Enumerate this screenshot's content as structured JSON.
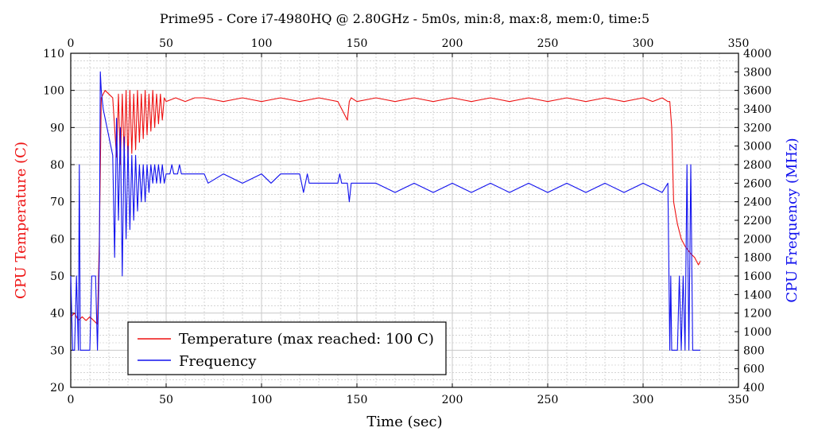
{
  "chart_data": {
    "type": "line",
    "title": "Prime95 - Core i7-4980HQ @ 2.80GHz - 5m0s, min:8, max:8, mem:0, time:5",
    "xlabel": "Time (sec)",
    "ylabel_left": "CPU Temperature (C)",
    "ylabel_right": "CPU Frequency (MHz)",
    "xlim": [
      0,
      350
    ],
    "ylim_left": [
      20,
      110
    ],
    "ylim_right": [
      400,
      4000
    ],
    "x_ticks": [
      "0",
      "50",
      "100",
      "150",
      "200",
      "250",
      "300",
      "350"
    ],
    "y_ticks_left": [
      "20",
      "30",
      "40",
      "50",
      "60",
      "70",
      "80",
      "90",
      "100",
      "110"
    ],
    "y_ticks_right": [
      "400",
      "600",
      "800",
      "1000",
      "1200",
      "1400",
      "1600",
      "1800",
      "2000",
      "2200",
      "2400",
      "2600",
      "2800",
      "3000",
      "3200",
      "3400",
      "3600",
      "3800",
      "4000"
    ],
    "grid": true,
    "legend_position": "bottom-left",
    "colors": {
      "temperature": "#ee1111",
      "frequency": "#1111ee"
    },
    "series": [
      {
        "name": "Temperature (max reached: 100 C)",
        "axis": "left",
        "x": [
          0,
          2,
          4,
          6,
          8,
          10,
          12,
          14,
          15,
          16,
          18,
          20,
          22,
          24,
          25,
          26,
          27,
          28,
          29,
          30,
          31,
          32,
          33,
          34,
          35,
          36,
          37,
          38,
          39,
          40,
          41,
          42,
          43,
          44,
          45,
          46,
          47,
          48,
          49,
          50,
          55,
          60,
          65,
          70,
          80,
          90,
          100,
          110,
          120,
          130,
          140,
          145,
          146,
          147,
          150,
          160,
          170,
          180,
          190,
          200,
          210,
          220,
          230,
          240,
          250,
          260,
          270,
          280,
          290,
          300,
          305,
          310,
          313,
          314,
          315,
          316,
          318,
          320,
          322,
          325,
          327,
          328,
          329,
          330
        ],
        "y": [
          39,
          40,
          38,
          39,
          38,
          39,
          38,
          37,
          60,
          98,
          100,
          99,
          98,
          82,
          99,
          80,
          99,
          82,
          100,
          81,
          100,
          83,
          99,
          84,
          100,
          86,
          99,
          87,
          100,
          88,
          99,
          89,
          100,
          90,
          99,
          91,
          99,
          92,
          98,
          97,
          98,
          97,
          98,
          98,
          97,
          98,
          97,
          98,
          97,
          98,
          97,
          92,
          97,
          98,
          97,
          98,
          97,
          98,
          97,
          98,
          97,
          98,
          97,
          98,
          97,
          98,
          97,
          98,
          97,
          98,
          97,
          98,
          97,
          97,
          90,
          70,
          64,
          60,
          58,
          56,
          55,
          54,
          53,
          54
        ]
      },
      {
        "name": "Frequency",
        "axis": "right",
        "x": [
          0,
          1,
          2,
          3,
          4,
          4.5,
          5,
          6,
          8,
          10,
          11,
          12,
          13,
          14,
          15,
          15.5,
          16,
          17,
          18,
          19,
          20,
          21,
          22,
          23,
          24,
          25,
          26,
          27,
          28,
          29,
          30,
          31,
          32,
          33,
          34,
          35,
          36,
          37,
          38,
          39,
          40,
          41,
          42,
          43,
          44,
          45,
          46,
          47,
          48,
          49,
          50,
          52,
          53,
          54,
          56,
          57,
          58,
          60,
          62,
          64,
          70,
          72,
          80,
          90,
          100,
          105,
          110,
          120,
          122,
          124,
          125,
          126,
          130,
          140,
          141,
          142,
          145,
          146,
          147,
          150,
          160,
          170,
          180,
          190,
          200,
          210,
          220,
          230,
          240,
          250,
          260,
          270,
          280,
          290,
          300,
          310,
          313,
          314,
          314.5,
          315,
          316,
          318,
          319,
          320,
          321,
          322,
          323,
          324,
          325,
          326,
          327,
          330
        ],
        "y": [
          1600,
          800,
          800,
          1600,
          800,
          2800,
          800,
          800,
          800,
          800,
          1600,
          1600,
          1600,
          800,
          1800,
          3800,
          3600,
          3400,
          3300,
          3200,
          3100,
          3000,
          2900,
          1800,
          3300,
          2200,
          3200,
          1600,
          3100,
          2000,
          3000,
          2100,
          2900,
          2200,
          2900,
          2300,
          2800,
          2400,
          2800,
          2400,
          2800,
          2500,
          2800,
          2600,
          2800,
          2600,
          2800,
          2600,
          2800,
          2600,
          2700,
          2700,
          2800,
          2700,
          2700,
          2800,
          2700,
          2700,
          2700,
          2700,
          2700,
          2600,
          2700,
          2600,
          2700,
          2600,
          2700,
          2700,
          2500,
          2700,
          2600,
          2600,
          2600,
          2600,
          2700,
          2600,
          2600,
          2400,
          2600,
          2600,
          2600,
          2500,
          2600,
          2500,
          2600,
          2500,
          2600,
          2500,
          2600,
          2500,
          2600,
          2500,
          2600,
          2500,
          2600,
          2500,
          2600,
          800,
          1600,
          800,
          800,
          800,
          1600,
          800,
          1600,
          800,
          2800,
          800,
          2800,
          800,
          800,
          800
        ]
      }
    ]
  }
}
